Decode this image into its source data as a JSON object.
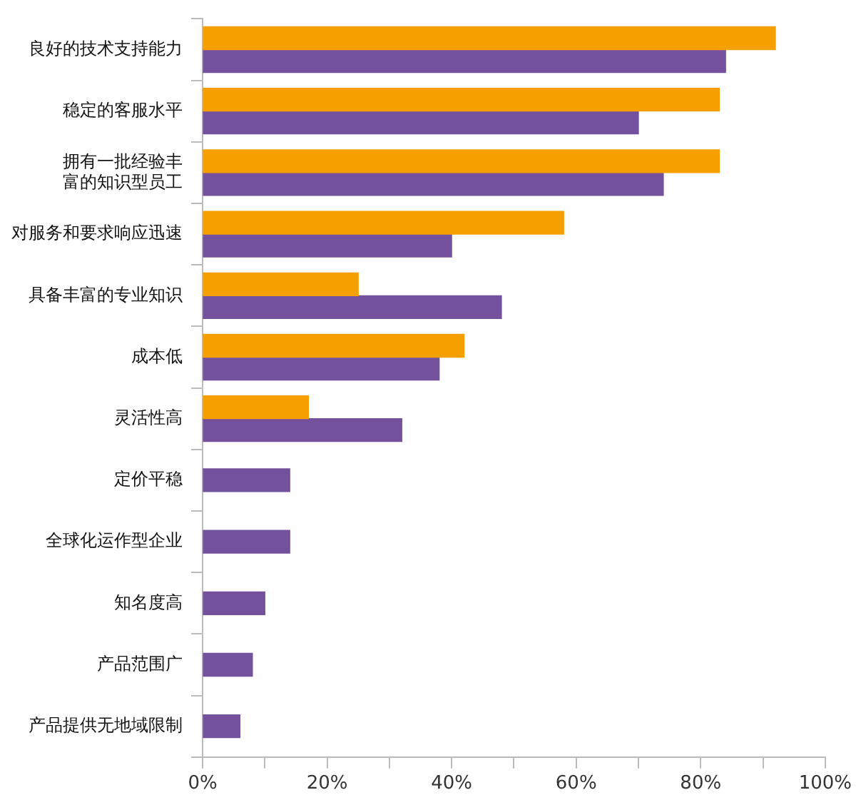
{
  "chart_data": {
    "type": "bar",
    "orientation": "horizontal",
    "categories": [
      "良好的技术支持能力",
      "稳定的客服水平",
      "拥有一批经验丰富的知识型员工",
      "对服务和要求响应迅速",
      "具备丰富的专业知识",
      "成本低",
      "灵活性高",
      "定价平稳",
      "全球化运作型企业",
      "知名度高",
      "产品范围广",
      "产品提供无地域限制"
    ],
    "series": [
      {
        "color": "#f5a000",
        "values": [
          92,
          83,
          83,
          58,
          25,
          42,
          17,
          null,
          null,
          null,
          null,
          null
        ]
      },
      {
        "color": "#74519c",
        "values": [
          84,
          70,
          74,
          40,
          48,
          38,
          32,
          14,
          14,
          10,
          8,
          6
        ]
      }
    ],
    "xlim": [
      0,
      100
    ],
    "xticks": [
      {
        "value": 0,
        "label": "0%"
      },
      {
        "value": 10,
        "label": null
      },
      {
        "value": 20,
        "label": "20%"
      },
      {
        "value": 30,
        "label": null
      },
      {
        "value": 40,
        "label": "40%"
      },
      {
        "value": 50,
        "label": null
      },
      {
        "value": 60,
        "label": "60%"
      },
      {
        "value": 70,
        "label": null
      },
      {
        "value": 80,
        "label": "80%"
      },
      {
        "value": 90,
        "label": null
      },
      {
        "value": 100,
        "label": "100%"
      }
    ],
    "grid": false,
    "legend": false
  }
}
